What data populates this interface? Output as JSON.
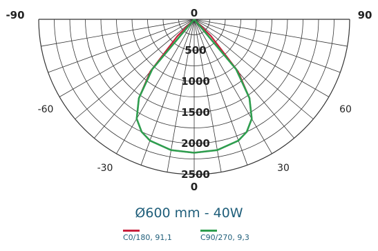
{
  "chart_data": {
    "type": "polar",
    "title": "Ø600 mm - 40W",
    "angle_ticks_top": [
      "-90",
      "0",
      "90"
    ],
    "angle_ticks_side": [
      "-60",
      "60"
    ],
    "angle_ticks_low": [
      "-30",
      "30"
    ],
    "angle_tick_center_bottom": "0",
    "radial_ticks": [
      "500",
      "1000",
      "1500",
      "2000",
      "2500"
    ],
    "rmax": 2500,
    "angle_range": [
      -90,
      90
    ],
    "grid": true,
    "series": [
      {
        "name": "C0/180, 91,1",
        "color": "#c8203c",
        "angles": [
          -90,
          -80,
          -70,
          -60,
          -55,
          -50,
          -45,
          -40,
          -35,
          -30,
          -25,
          -20,
          -10,
          0,
          10,
          20,
          25,
          30,
          35,
          40,
          45,
          50,
          55,
          60,
          70,
          80,
          90
        ],
        "values": [
          0,
          0,
          0,
          0,
          0,
          0,
          380,
          1100,
          1550,
          1850,
          2000,
          2080,
          2140,
          2150,
          2140,
          2080,
          2000,
          1850,
          1550,
          1100,
          380,
          0,
          0,
          0,
          0,
          0,
          0
        ]
      },
      {
        "name": "C90/270, 9,3",
        "color": "#2e9e4f",
        "angles": [
          -90,
          -80,
          -70,
          -60,
          -55,
          -50,
          -45,
          -40,
          -35,
          -30,
          -25,
          -20,
          -10,
          0,
          10,
          20,
          25,
          30,
          35,
          40,
          45,
          50,
          55,
          60,
          70,
          80,
          90
        ],
        "values": [
          0,
          0,
          0,
          0,
          0,
          0,
          0,
          1050,
          1550,
          1850,
          2000,
          2080,
          2140,
          2150,
          2140,
          2080,
          2000,
          1850,
          1550,
          1050,
          0,
          0,
          0,
          0,
          0,
          0,
          0
        ]
      }
    ]
  },
  "legend": {
    "c0_label": "C0/180, 91,1",
    "c90_label": "C90/270, 9,3"
  }
}
